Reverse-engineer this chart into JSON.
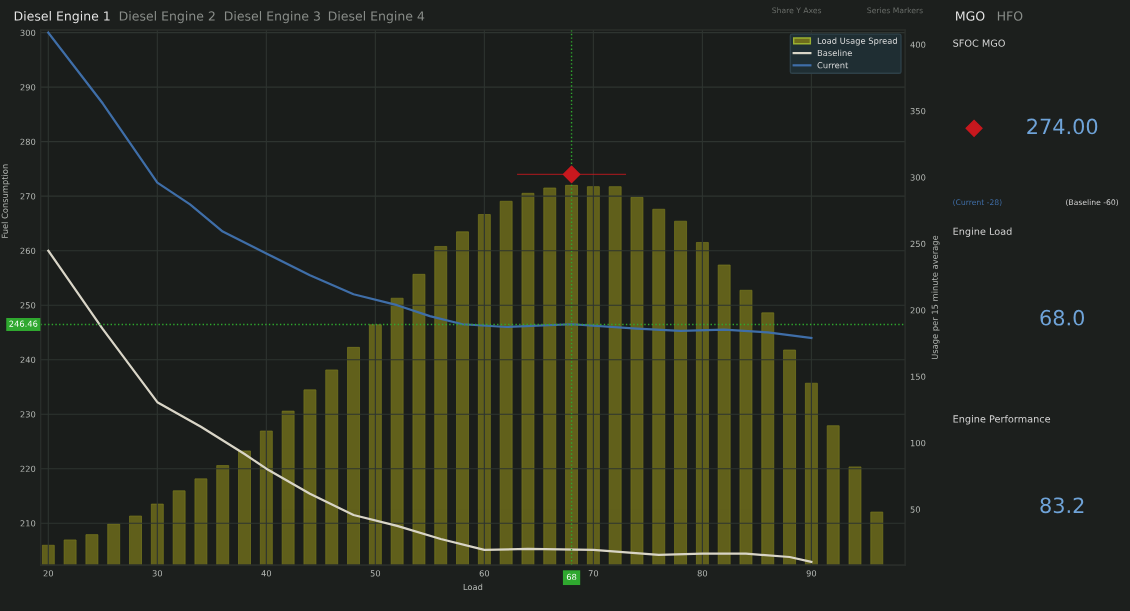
{
  "chart_data": {
    "type": "bar",
    "xlabel": "Load",
    "ylabel": "Fuel Consumption",
    "y2label": "Usage per 15 minute average",
    "xlim": [
      19.3,
      98.6
    ],
    "xticks": [
      20,
      30,
      40,
      50,
      60,
      70,
      80,
      90
    ],
    "ylim": [
      202.3,
      300.5
    ],
    "yticks": [
      210,
      220,
      230,
      240,
      250,
      260,
      270,
      280,
      290,
      300
    ],
    "y2lim": [
      8,
      411
    ],
    "y2ticks": [
      50,
      100,
      150,
      200,
      250,
      300,
      350,
      400
    ],
    "grid": true,
    "legend": "top right",
    "series": [
      {
        "name": "Load Usage Spread",
        "axis": "y2",
        "color": "#6e6c1c",
        "x": [
          20,
          22,
          24,
          26,
          28,
          30,
          32,
          34,
          36,
          38,
          40,
          42,
          44,
          46,
          48,
          50,
          52,
          54,
          56,
          58,
          60,
          62,
          64,
          66,
          68,
          70,
          72,
          74,
          76,
          78,
          80,
          82,
          84,
          86,
          88,
          90,
          92,
          94,
          96
        ],
        "values": [
          23,
          27,
          31,
          39,
          45,
          54,
          64,
          73,
          83,
          94,
          109,
          124,
          140,
          155,
          172,
          189,
          209,
          227,
          248,
          259,
          272,
          282,
          288,
          292,
          294,
          293,
          293,
          285,
          276,
          267,
          251,
          234,
          215,
          198,
          170,
          145,
          113,
          82,
          48
        ]
      },
      {
        "name": "Baseline",
        "type": "line",
        "color": "#d9d5c7",
        "x": [
          20,
          25,
          30,
          34,
          38,
          40,
          44,
          48,
          52,
          56,
          60,
          64,
          70,
          76,
          80,
          84,
          88,
          90
        ],
        "values": [
          260,
          245.6,
          232.2,
          227.7,
          222.7,
          220,
          215.4,
          211.5,
          209.5,
          207.1,
          205.1,
          205.3,
          205.1,
          204.2,
          204.4,
          204.4,
          203.8,
          202.9
        ]
      },
      {
        "name": "Current",
        "type": "line",
        "color": "#3f6ea8",
        "x": [
          20,
          25,
          30,
          33,
          36,
          40,
          44,
          48,
          52,
          55,
          58,
          62,
          68,
          74,
          78,
          82,
          86,
          90
        ],
        "values": [
          300,
          287,
          272.5,
          268.5,
          263.5,
          259.5,
          255.5,
          252,
          250,
          248,
          246.5,
          246,
          246.5,
          245.7,
          245.3,
          245.5,
          245,
          244
        ]
      },
      {
        "type": "scatter",
        "marker": "diamond",
        "color": "#c8181e",
        "x": [
          68
        ],
        "values": [
          274
        ],
        "xerrors": [
          5
        ]
      }
    ],
    "ref_lines": [
      {
        "axis": "x",
        "value": 68,
        "label": "68",
        "color": "#2fa82f",
        "line_style": "dotted"
      },
      {
        "axis": "y",
        "value": 246.46,
        "label": "246.46",
        "color": "#2fa82f",
        "line_style": "dotted"
      }
    ],
    "annotations": [
      "Diesel Engine 1",
      "Diesel Engine 2",
      "Diesel Engine 3",
      "Diesel Engine 4",
      "Share Y Axes",
      "Series Markers",
      "MGO",
      "HFO",
      "SFOC MGO",
      "274.00",
      "(Current -28)",
      "(Baseline -60)",
      "Engine Load",
      "68.0",
      "Engine Performance",
      "83.2"
    ]
  }
}
